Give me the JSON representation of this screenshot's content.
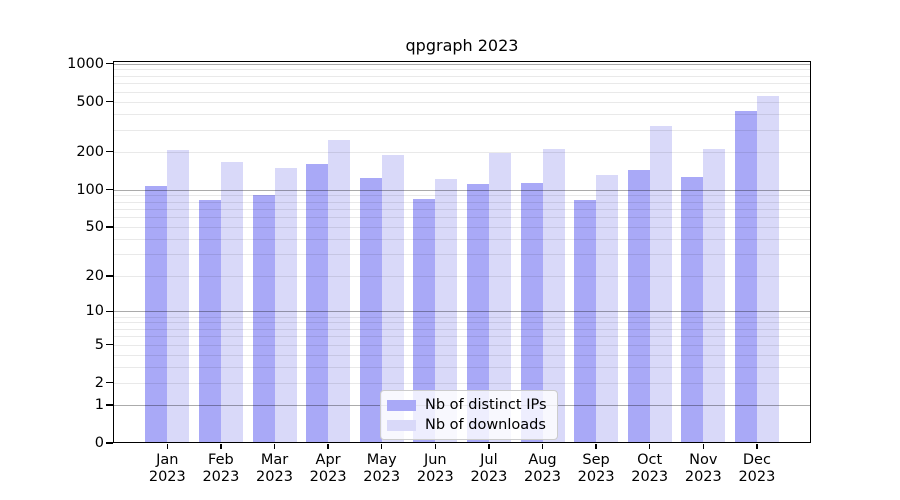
{
  "figure": {
    "background": "#ffffff"
  },
  "chart_data": {
    "type": "bar",
    "title": "qpgraph 2023",
    "categories": [
      "Jan",
      "Feb",
      "Mar",
      "Apr",
      "May",
      "Jun",
      "Jul",
      "Aug",
      "Sep",
      "Oct",
      "Nov",
      "Dec"
    ],
    "category_year": "2023",
    "series": [
      {
        "name": "Nb of distinct IPs",
        "color": "#a9a9f7",
        "values": [
          107,
          82,
          90,
          160,
          124,
          84,
          111,
          112,
          83,
          142,
          125,
          420
        ]
      },
      {
        "name": "Nb of downloads",
        "color": "#d9d9f9",
        "values": [
          207,
          165,
          148,
          249,
          187,
          122,
          196,
          212,
          130,
          320,
          209,
          555
        ]
      }
    ],
    "yscale": "log1p",
    "ylim": [
      0,
      1000
    ],
    "y_ticks": [
      0,
      1,
      2,
      5,
      10,
      20,
      50,
      100,
      200,
      500,
      1000
    ],
    "grid": true,
    "legend_position": "lower center",
    "colors": {
      "major_grid": "#ababab",
      "minor_grid": "#ebebeb",
      "axis": "#000000",
      "background": "#ffffff"
    }
  }
}
